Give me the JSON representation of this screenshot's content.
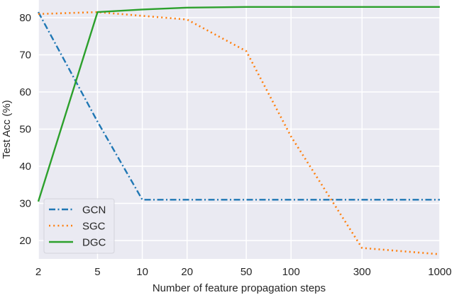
{
  "chart_data": {
    "type": "line",
    "title": "",
    "xlabel": "Number of feature propagation steps",
    "ylabel": "Test Acc (%)",
    "x_scale": "log",
    "x": [
      2,
      5,
      10,
      20,
      50,
      100,
      300,
      1000
    ],
    "x_tick_labels": [
      "2",
      "5",
      "10",
      "20",
      "50",
      "100",
      "300",
      "1000"
    ],
    "y_ticks": [
      20,
      30,
      40,
      50,
      60,
      70,
      80
    ],
    "ylim": [
      15.2,
      84.8
    ],
    "grid": true,
    "legend_position": "lower left",
    "series": [
      {
        "name": "GCN",
        "style": "dashdot",
        "color": "#1f77b4",
        "values": [
          81.5,
          52.0,
          31.0,
          31.0,
          31.0,
          31.0,
          31.0,
          31.0
        ]
      },
      {
        "name": "SGC",
        "style": "dotted",
        "color": "#ff7f0e",
        "values": [
          81.0,
          81.5,
          80.5,
          79.5,
          71.0,
          48.0,
          18.0,
          16.3
        ]
      },
      {
        "name": "DGC",
        "style": "solid",
        "color": "#2ca02c",
        "values": [
          30.5,
          81.5,
          82.2,
          82.7,
          82.9,
          82.9,
          82.9,
          82.9
        ]
      }
    ]
  },
  "colors": {
    "plot_background": "#eaeaf2",
    "grid": "#ffffff"
  }
}
